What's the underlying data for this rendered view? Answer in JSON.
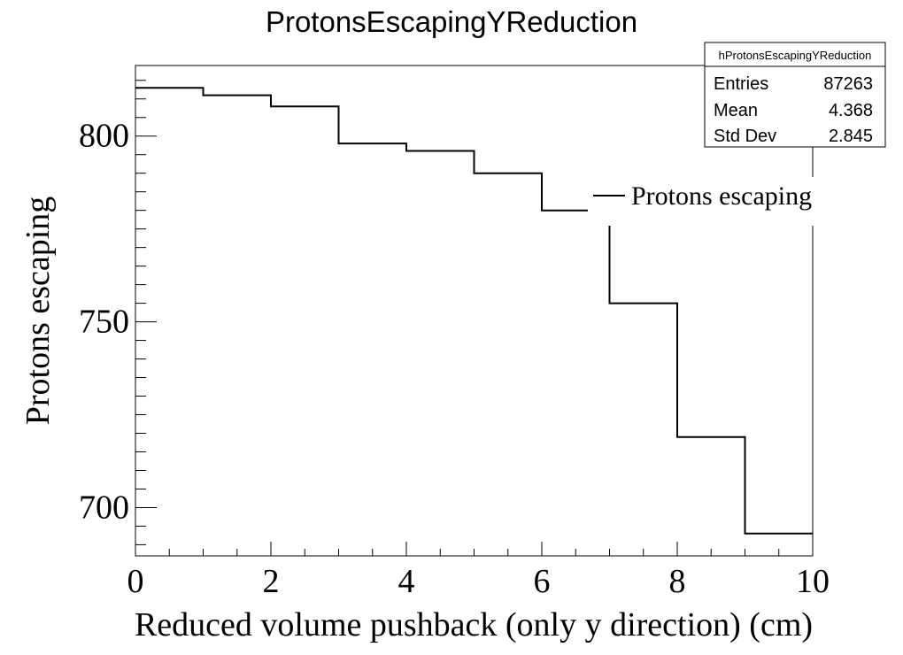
{
  "chart_data": {
    "type": "bar",
    "histogram_style": "step",
    "title": "ProtonsEscapingYReduction",
    "xlabel": "Reduced volume pushback (only y direction) (cm)",
    "ylabel": "Protons escaping",
    "xlim": [
      0,
      10
    ],
    "ylim": [
      687,
      819
    ],
    "x_ticks": [
      0,
      2,
      4,
      6,
      8,
      10
    ],
    "y_ticks": [
      700,
      750,
      800
    ],
    "bin_edges": [
      0,
      1,
      2,
      3,
      4,
      5,
      6,
      7,
      8,
      9,
      10
    ],
    "series": [
      {
        "name": "Protons escaping",
        "values": [
          813,
          811,
          808,
          798,
          796,
          790,
          780,
          755,
          719,
          693
        ]
      }
    ],
    "legend": {
      "entries": [
        "Protons escaping"
      ],
      "placement": "upper-right inside plot"
    },
    "stats_box": {
      "title": "hProtonsEscapingYReduction",
      "rows": [
        {
          "label": "Entries",
          "value": "87263"
        },
        {
          "label": "Mean",
          "value": "4.368"
        },
        {
          "label": "Std Dev",
          "value": "2.845"
        }
      ]
    }
  }
}
